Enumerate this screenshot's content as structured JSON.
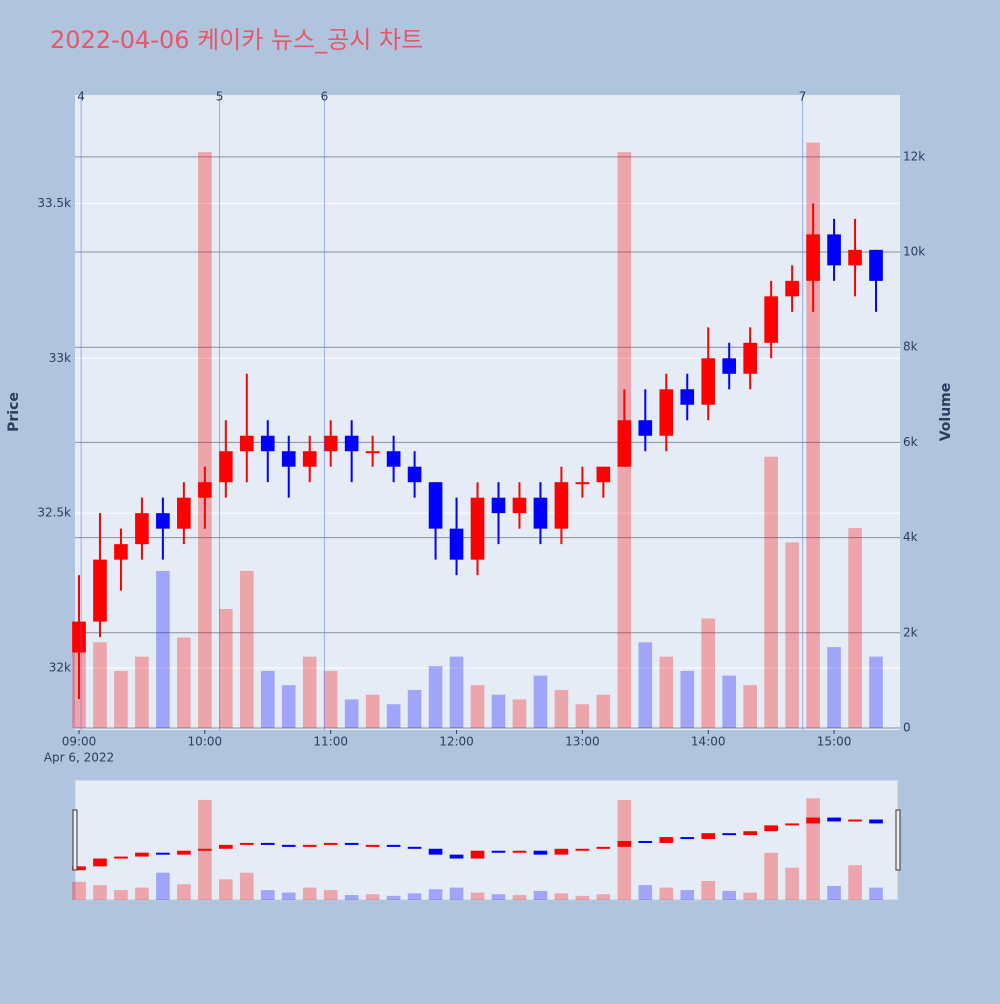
{
  "chart_data": {
    "type": "candlestick",
    "title": "2022-04-06 케이카 뉴스_공시 차트",
    "y_label": "Price",
    "y2_label": "Volume",
    "x_date_label": "Apr 6, 2022",
    "up_color": "#ff0000",
    "down_color": "#0000ff",
    "x": [
      "09:00",
      "09:10",
      "09:20",
      "09:30",
      "09:40",
      "09:50",
      "10:00",
      "10:10",
      "10:20",
      "10:30",
      "10:40",
      "10:50",
      "11:00",
      "11:10",
      "11:20",
      "11:30",
      "11:40",
      "11:50",
      "12:00",
      "12:10",
      "12:20",
      "12:30",
      "12:40",
      "12:50",
      "13:00",
      "13:10",
      "13:20",
      "13:30",
      "13:40",
      "13:50",
      "14:00",
      "14:10",
      "14:20",
      "14:30",
      "14:40",
      "14:50",
      "15:00",
      "15:10",
      "15:20"
    ],
    "open": [
      32050,
      32150,
      32350,
      32400,
      32500,
      32450,
      32550,
      32600,
      32700,
      32750,
      32700,
      32650,
      32700,
      32750,
      32700,
      32700,
      32650,
      32600,
      32450,
      32350,
      32550,
      32500,
      32550,
      32450,
      32600,
      32600,
      32650,
      32800,
      32750,
      32900,
      32850,
      33000,
      32950,
      33050,
      33200,
      33250,
      33400,
      33300,
      33350
    ],
    "high": [
      32300,
      32500,
      32450,
      32550,
      32550,
      32600,
      32650,
      32800,
      32950,
      32800,
      32750,
      32750,
      32800,
      32800,
      32750,
      32750,
      32700,
      32600,
      32550,
      32600,
      32600,
      32600,
      32600,
      32650,
      32650,
      32650,
      32900,
      32900,
      32950,
      32950,
      33100,
      33050,
      33100,
      33250,
      33300,
      33500,
      33450,
      33450,
      33350
    ],
    "low": [
      31900,
      32100,
      32250,
      32350,
      32350,
      32400,
      32450,
      32550,
      32600,
      32600,
      32550,
      32600,
      32650,
      32600,
      32650,
      32600,
      32550,
      32350,
      32300,
      32300,
      32400,
      32450,
      32400,
      32400,
      32550,
      32550,
      32650,
      32700,
      32700,
      32800,
      32800,
      32900,
      32900,
      33000,
      33150,
      33150,
      33250,
      33200,
      33150
    ],
    "close": [
      32150,
      32350,
      32400,
      32500,
      32450,
      32550,
      32600,
      32700,
      32750,
      32700,
      32650,
      32700,
      32750,
      32700,
      32700,
      32650,
      32600,
      32450,
      32350,
      32550,
      32500,
      32550,
      32450,
      32600,
      32600,
      32650,
      32800,
      32750,
      32900,
      32850,
      33000,
      32950,
      33050,
      33200,
      33250,
      33400,
      33300,
      33350,
      33250
    ],
    "volume": [
      2200,
      1800,
      1200,
      1500,
      3300,
      1900,
      12100,
      2500,
      3300,
      1200,
      900,
      1500,
      1200,
      600,
      700,
      500,
      800,
      1300,
      1500,
      900,
      700,
      600,
      1100,
      800,
      500,
      700,
      12100,
      1800,
      1500,
      1200,
      2300,
      1100,
      900,
      5700,
      3900,
      12300,
      1700,
      4200,
      1500
    ],
    "xlim": [
      "09:00",
      "15:30"
    ],
    "xticks": [
      "09:00",
      "10:00",
      "11:00",
      "12:00",
      "13:00",
      "14:00",
      "15:00"
    ],
    "ylim": [
      31800,
      33850
    ],
    "yticks": [
      {
        "value": 32000,
        "label": "32k"
      },
      {
        "value": 32500,
        "label": "32.5k"
      },
      {
        "value": 33000,
        "label": "33k"
      },
      {
        "value": 33500,
        "label": "33.5k"
      }
    ],
    "y2lim": [
      0,
      13300
    ],
    "y2ticks": [
      0,
      {
        "value": 2000,
        "label": "2k"
      },
      {
        "value": 4000,
        "label": "4k"
      },
      {
        "value": 6000,
        "label": "6k"
      },
      {
        "value": 8000,
        "label": "8k"
      },
      {
        "value": 10000,
        "label": "10k"
      },
      {
        "value": 12000,
        "label": "12k"
      }
    ],
    "news": [
      {
        "label": "4",
        "x": "09:01"
      },
      {
        "label": "5",
        "x": "10:07"
      },
      {
        "label": "6",
        "x": "10:57"
      },
      {
        "label": "7",
        "x": "14:45"
      }
    ]
  }
}
